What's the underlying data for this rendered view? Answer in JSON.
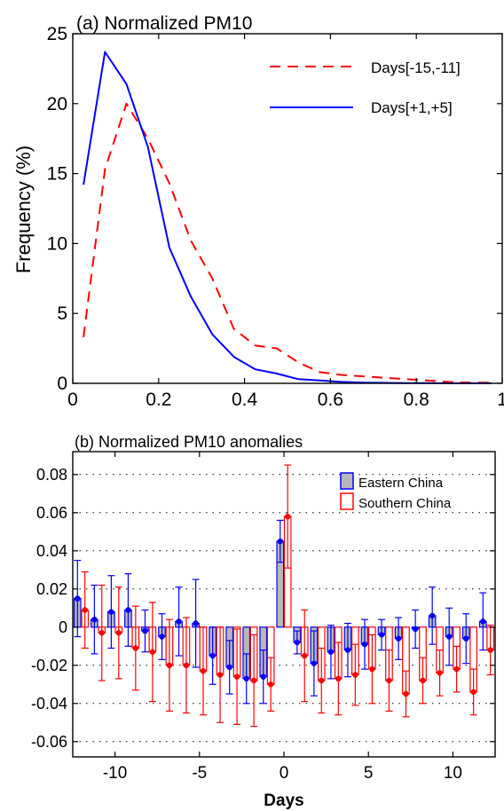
{
  "chart_data": [
    {
      "type": "line",
      "title": "(a) Normalized PM10",
      "xlabel": "",
      "ylabel": "Frequency (%)",
      "xlim": [
        0,
        1
      ],
      "ylim": [
        0,
        25
      ],
      "x_ticks": [
        "0",
        "0.2",
        "0.4",
        "0.6",
        "0.8",
        "1"
      ],
      "y_ticks": [
        "0",
        "5",
        "10",
        "15",
        "20",
        "25"
      ],
      "grid": false,
      "legend_position": "top-right",
      "series": [
        {
          "name": "Days[-15,-11]",
          "color": "#ff0000",
          "style": "dashed",
          "x": [
            0.025,
            0.075,
            0.125,
            0.175,
            0.225,
            0.275,
            0.325,
            0.375,
            0.425,
            0.475,
            0.525,
            0.575,
            0.625,
            0.675,
            0.725,
            0.775,
            0.825,
            0.875,
            0.925,
            0.975
          ],
          "values": [
            3.3,
            15.3,
            20.0,
            17.5,
            14.3,
            10.2,
            7.5,
            3.9,
            2.7,
            2.5,
            1.5,
            0.8,
            0.6,
            0.5,
            0.4,
            0.3,
            0.2,
            0.1,
            0.05,
            0.05
          ]
        },
        {
          "name": "Days[+1,+5]",
          "color": "#0000ff",
          "style": "solid",
          "x": [
            0.025,
            0.075,
            0.125,
            0.175,
            0.225,
            0.275,
            0.325,
            0.375,
            0.425,
            0.475,
            0.525,
            0.575,
            0.625,
            0.675,
            0.725,
            0.775,
            0.825,
            0.875,
            0.925,
            0.975
          ],
          "values": [
            14.2,
            23.7,
            21.4,
            16.9,
            9.7,
            6.2,
            3.5,
            1.9,
            1.0,
            0.7,
            0.3,
            0.2,
            0.1,
            0.05,
            0.03,
            0.02,
            0.01,
            0.0,
            0.0,
            0.0
          ]
        }
      ]
    },
    {
      "type": "bar",
      "title": "(b) Normalized PM10 anomalies",
      "xlabel": "Days",
      "ylabel": "",
      "xlim": [
        -12.5,
        12.5
      ],
      "ylim": [
        -0.068,
        0.092
      ],
      "x_ticks": [
        "-10",
        "-5",
        "0",
        "5",
        "10"
      ],
      "y_ticks": [
        "-0.06",
        "-0.04",
        "-0.02",
        "0",
        "0.02",
        "0.04",
        "0.06",
        "0.08"
      ],
      "grid": true,
      "legend_position": "top-right",
      "series": [
        {
          "name": "Eastern China",
          "color": "#0000ff",
          "fill": "#b8b8b8",
          "x": [
            -12,
            -11,
            -10,
            -9,
            -8,
            -7,
            -6,
            -5,
            -4,
            -3,
            -2,
            -1,
            0,
            1,
            2,
            3,
            4,
            5,
            6,
            7,
            8,
            9,
            10,
            11,
            12
          ],
          "values": [
            0.015,
            0.004,
            0.008,
            0.009,
            -0.002,
            -0.005,
            0.003,
            0.002,
            -0.015,
            -0.021,
            -0.027,
            -0.026,
            0.045,
            -0.008,
            -0.019,
            -0.013,
            -0.012,
            -0.009,
            -0.004,
            -0.006,
            -0.001,
            0.006,
            -0.005,
            -0.006,
            0.003
          ],
          "errors": [
            0.02,
            0.018,
            0.019,
            0.019,
            0.011,
            0.012,
            0.018,
            0.023,
            0.015,
            0.014,
            0.013,
            0.014,
            0.011,
            0.006,
            0.017,
            0.014,
            0.014,
            0.013,
            0.008,
            0.011,
            0.01,
            0.015,
            0.015,
            0.013,
            0.015
          ]
        },
        {
          "name": "Southern China",
          "color": "#ff0000",
          "fill": "#ffffff",
          "x": [
            -12,
            -11,
            -10,
            -9,
            -8,
            -7,
            -6,
            -5,
            -4,
            -3,
            -2,
            -1,
            0,
            1,
            2,
            3,
            4,
            5,
            6,
            7,
            8,
            9,
            10,
            11,
            12
          ],
          "values": [
            0.009,
            -0.003,
            -0.003,
            -0.011,
            -0.013,
            -0.02,
            -0.02,
            -0.023,
            -0.025,
            -0.026,
            -0.028,
            -0.03,
            0.058,
            -0.015,
            -0.028,
            -0.027,
            -0.025,
            -0.022,
            -0.028,
            -0.035,
            -0.028,
            -0.024,
            -0.022,
            -0.034,
            -0.012
          ],
          "errors": [
            0.02,
            0.025,
            0.024,
            0.022,
            0.026,
            0.024,
            0.025,
            0.023,
            0.025,
            0.025,
            0.024,
            0.014,
            0.027,
            0.024,
            0.017,
            0.019,
            0.016,
            0.018,
            0.016,
            0.012,
            0.012,
            0.012,
            0.012,
            0.012,
            0.013
          ]
        }
      ]
    }
  ]
}
